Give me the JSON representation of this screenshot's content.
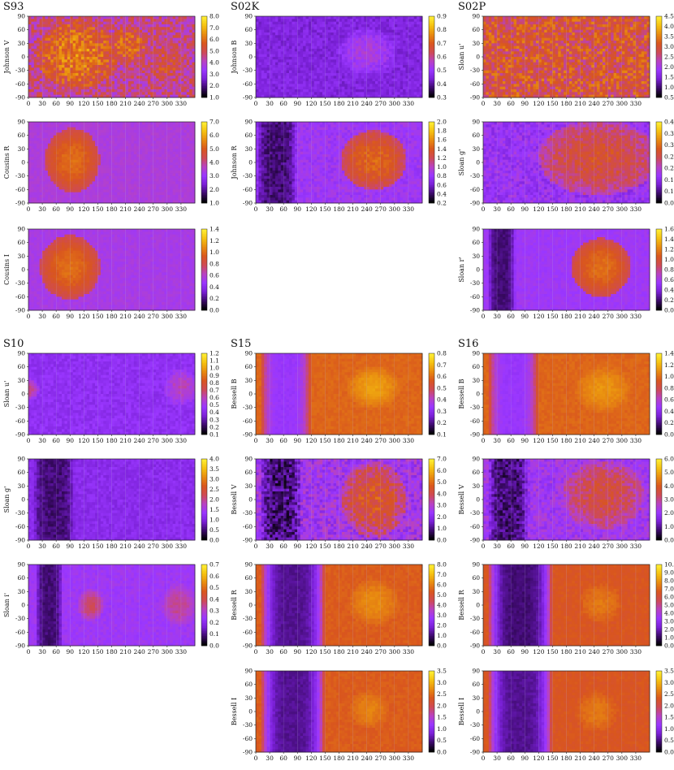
{
  "colors": {
    "scale": [
      "#000000",
      "#3d0a6b",
      "#7a20d6",
      "#9a37ff",
      "#b842c2",
      "#cf4a55",
      "#d9561e",
      "#e88a10",
      "#f5c010",
      "#ffee33"
    ],
    "grid": "#b9b4d8",
    "axis": "#222222"
  },
  "chart_data": [
    {
      "group": "S93",
      "panels": [
        {
          "type": "heatmap",
          "ylabel": "Johnson V",
          "xlim": [
            0,
            360
          ],
          "ylim": [
            -90,
            90
          ],
          "cbar": [
            "8.0",
            "7.0",
            "6.0",
            "5.0",
            "4.0",
            "3.0",
            "2.0",
            "1.0"
          ],
          "base": 0.5,
          "features": [
            {
              "x": 105,
              "y": 5,
              "rx": 75,
              "ry": 65,
              "v": 0.75
            },
            {
              "x": 215,
              "y": 25,
              "rx": 40,
              "ry": 35,
              "v": 0.7
            },
            {
              "x": 300,
              "y": -20,
              "rx": 40,
              "ry": 50,
              "v": 0.6
            }
          ],
          "tex": 0.25
        },
        {
          "type": "heatmap",
          "ylabel": "Cousins R",
          "xlim": [
            0,
            360
          ],
          "ylim": [
            -90,
            90
          ],
          "cbar": [
            "7.0",
            "6.0",
            "5.0",
            "4.0",
            "3.0",
            "2.0",
            "1.0"
          ],
          "base": 0.4,
          "features": [
            {
              "x": 95,
              "y": 5,
              "rx": 50,
              "ry": 60,
              "v": 0.72
            }
          ],
          "tex": 0.05
        },
        {
          "type": "heatmap",
          "ylabel": "Cousins I",
          "xlim": [
            0,
            360
          ],
          "ylim": [
            -90,
            90
          ],
          "cbar": [
            "1.4",
            "1.2",
            "1.0",
            "0.8",
            "0.6",
            "0.4",
            "0.2",
            "0.0"
          ],
          "base": 0.38,
          "features": [
            {
              "x": 90,
              "y": 5,
              "rx": 55,
              "ry": 60,
              "v": 0.72
            }
          ],
          "tex": 0.05
        }
      ],
      "xticks": [
        "0",
        "30",
        "60",
        "90",
        "120",
        "150",
        "180",
        "210",
        "240",
        "270",
        "300",
        "330"
      ]
    },
    {
      "group": "S02K",
      "panels": [
        {
          "type": "heatmap",
          "ylabel": "Johnson B",
          "xlim": [
            0,
            360
          ],
          "ylim": [
            -90,
            90
          ],
          "cbar": [
            "0.9",
            "0.8",
            "0.7",
            "0.6",
            "0.5",
            "0.4",
            "0.3"
          ],
          "base": 0.25,
          "features": [
            {
              "x": 240,
              "y": 10,
              "rx": 60,
              "ry": 50,
              "v": 0.4
            }
          ],
          "tex": 0.1
        },
        {
          "type": "heatmap",
          "ylabel": "Johnson R",
          "xlim": [
            0,
            360
          ],
          "ylim": [
            -90,
            90
          ],
          "cbar": [
            "2.0",
            "1.8",
            "1.6",
            "1.4",
            "1.2",
            "1.0",
            "0.8",
            "0.6",
            "0.4",
            "0.2"
          ],
          "base": 0.35,
          "dark": [
            0,
            90
          ],
          "features": [
            {
              "x": 255,
              "y": 5,
              "rx": 60,
              "ry": 55,
              "v": 0.7
            }
          ],
          "tex": 0.1
        },
        null
      ],
      "xticks": [
        "0",
        "30",
        "60",
        "90",
        "120",
        "150",
        "180",
        "210",
        "240",
        "270",
        "300",
        "330"
      ]
    },
    {
      "group": "S02P",
      "panels": [
        {
          "type": "heatmap",
          "ylabel": "Sloan u'",
          "xlim": [
            0,
            360
          ],
          "ylim": [
            -90,
            90
          ],
          "cbar": [
            "4.5",
            "4.0",
            "3.5",
            "3.0",
            "2.5",
            "2.0",
            "1.5",
            "1.0",
            "0.5"
          ],
          "base": 0.62,
          "features": [
            {
              "x": 320,
              "y": 0,
              "rx": 40,
              "ry": 80,
              "v": 0.38
            }
          ],
          "tex": 0.3
        },
        {
          "type": "heatmap",
          "ylabel": "Sloan g'",
          "xlim": [
            0,
            360
          ],
          "ylim": [
            -90,
            90
          ],
          "cbar": [
            "0.4",
            "0.3",
            "0.3",
            "0.2",
            "0.2",
            "0.1",
            "0.1",
            "0.0"
          ],
          "base": 0.33,
          "features": [
            {
              "x": 250,
              "y": 10,
              "rx": 110,
              "ry": 70,
              "v": 0.62
            }
          ],
          "tex": 0.15
        },
        {
          "type": "heatmap",
          "ylabel": "Sloan r'",
          "xlim": [
            0,
            360
          ],
          "ylim": [
            -90,
            90
          ],
          "cbar": [
            "1.6",
            "1.4",
            "1.2",
            "1.0",
            "0.8",
            "0.6",
            "0.4",
            "0.2",
            "0.0"
          ],
          "base": 0.35,
          "dark": [
            10,
            70
          ],
          "features": [
            {
              "x": 255,
              "y": 5,
              "rx": 55,
              "ry": 55,
              "v": 0.72
            }
          ],
          "tex": 0.05
        }
      ],
      "xticks": [
        "0",
        "30",
        "60",
        "90",
        "120",
        "150",
        "180",
        "210",
        "240",
        "270",
        "300",
        "330"
      ]
    },
    {
      "group": "S10",
      "panels": [
        {
          "type": "heatmap",
          "ylabel": "Sloan u'",
          "xlim": [
            0,
            360
          ],
          "ylim": [
            -90,
            90
          ],
          "cbar": [
            "1.2",
            "1.1",
            "1.0",
            "0.9",
            "0.8",
            "0.7",
            "0.6",
            "0.5",
            "0.4",
            "0.3",
            "0.2",
            "0.1"
          ],
          "base": 0.3,
          "features": [
            {
              "x": 330,
              "y": 15,
              "rx": 35,
              "ry": 40,
              "v": 0.45
            },
            {
              "x": 5,
              "y": 10,
              "rx": 15,
              "ry": 20,
              "v": 0.5
            }
          ],
          "tex": 0.08
        },
        {
          "type": "heatmap",
          "ylabel": "Sloan g'",
          "xlim": [
            0,
            360
          ],
          "ylim": [
            -90,
            90
          ],
          "cbar": [
            "4.0",
            "3.5",
            "3.0",
            "2.5",
            "2.0",
            "1.5",
            "1.0",
            "0.5",
            "0.0"
          ],
          "base": 0.28,
          "dark": [
            10,
            100
          ],
          "features": [],
          "tex": 0.08
        },
        {
          "type": "heatmap",
          "ylabel": "Sloan i'",
          "xlim": [
            0,
            360
          ],
          "ylim": [
            -90,
            90
          ],
          "cbar": [
            "0.7",
            "0.6",
            "0.5",
            "0.4",
            "0.3",
            "0.2",
            "0.1",
            "0.0"
          ],
          "base": 0.35,
          "dark": [
            15,
            75
          ],
          "features": [
            {
              "x": 135,
              "y": 0,
              "rx": 25,
              "ry": 30,
              "v": 0.55
            },
            {
              "x": 325,
              "y": 0,
              "rx": 35,
              "ry": 45,
              "v": 0.5
            }
          ],
          "tex": 0.06
        }
      ],
      "xticks": [
        "0",
        "30",
        "60",
        "90",
        "120",
        "150",
        "180",
        "210",
        "240",
        "270",
        "300",
        "330"
      ]
    },
    {
      "group": "S15",
      "panels": [
        {
          "type": "heatmap",
          "ylabel": "Bessell B",
          "xlim": [
            0,
            360
          ],
          "ylim": [
            -90,
            90
          ],
          "cbar": [
            "0.8",
            "0.7",
            "0.6",
            "0.5",
            "0.4",
            "0.3",
            "0.2",
            "0.1"
          ],
          "base": 0.7,
          "dark": [
            10,
            120
          ],
          "darkv": 0.33,
          "features": [
            {
              "x": 255,
              "y": 15,
              "rx": 60,
              "ry": 50,
              "v": 0.82
            }
          ],
          "tex": 0.04
        },
        {
          "type": "heatmap",
          "ylabel": "Bessell V",
          "xlim": [
            0,
            360
          ],
          "ylim": [
            -90,
            90
          ],
          "cbar": [
            "7.0",
            "6.0",
            "5.0",
            "4.0",
            "3.0",
            "2.0",
            "1.0",
            "0.0"
          ],
          "base": 0.36,
          "dark": [
            10,
            100
          ],
          "features": [
            {
              "x": 255,
              "y": 0,
              "rx": 60,
              "ry": 70,
              "v": 0.65
            }
          ],
          "tex": 0.2
        },
        {
          "type": "heatmap",
          "ylabel": "Bessell R",
          "xlim": [
            0,
            360
          ],
          "ylim": [
            -90,
            90
          ],
          "cbar": [
            "8.0",
            "7.0",
            "6.0",
            "5.0",
            "4.0",
            "3.0",
            "2.0",
            "1.0",
            "0.0"
          ],
          "base": 0.68,
          "dark": [
            10,
            150
          ],
          "darkv": 0.15,
          "features": [
            {
              "x": 255,
              "y": 5,
              "rx": 65,
              "ry": 60,
              "v": 0.78
            }
          ],
          "tex": 0.04
        },
        {
          "type": "heatmap",
          "ylabel": "Bessell I",
          "xlim": [
            0,
            360
          ],
          "ylim": [
            -90,
            90
          ],
          "cbar": [
            "3.5",
            "3.0",
            "2.5",
            "2.0",
            "1.5",
            "1.0",
            "0.5",
            "0.0"
          ],
          "base": 0.68,
          "dark": [
            10,
            150
          ],
          "darkv": 0.15,
          "features": [
            {
              "x": 245,
              "y": 5,
              "rx": 55,
              "ry": 55,
              "v": 0.76
            }
          ],
          "tex": 0.04
        }
      ],
      "xticks": [
        "0",
        "30",
        "60",
        "90",
        "120",
        "150",
        "180",
        "210",
        "240",
        "270",
        "300",
        "330"
      ]
    },
    {
      "group": "S16",
      "panels": [
        {
          "type": "heatmap",
          "ylabel": "Bessell B",
          "xlim": [
            0,
            360
          ],
          "ylim": [
            -90,
            90
          ],
          "cbar": [
            "1.4",
            "1.2",
            "1.0",
            "0.8",
            "0.6",
            "0.4",
            "0.2",
            "0.0"
          ],
          "base": 0.7,
          "dark": [
            10,
            120
          ],
          "darkv": 0.33,
          "features": [
            {
              "x": 260,
              "y": 10,
              "rx": 70,
              "ry": 60,
              "v": 0.8
            }
          ],
          "tex": 0.04
        },
        {
          "type": "heatmap",
          "ylabel": "Bessell V",
          "xlim": [
            0,
            360
          ],
          "ylim": [
            -90,
            90
          ],
          "cbar": [
            "6.0",
            "5.0",
            "4.0",
            "3.0",
            "2.0",
            "1.0",
            "0.0"
          ],
          "base": 0.36,
          "dark": [
            10,
            100
          ],
          "features": [
            {
              "x": 260,
              "y": 10,
              "rx": 75,
              "ry": 65,
              "v": 0.6
            }
          ],
          "tex": 0.15
        },
        {
          "type": "heatmap",
          "ylabel": "Bessell R",
          "xlim": [
            0,
            360
          ],
          "ylim": [
            -90,
            90
          ],
          "cbar": [
            "10.0",
            "9.0",
            "8.0",
            "7.0",
            "6.0",
            "5.0",
            "4.0",
            "3.0",
            "2.0",
            "1.0",
            "0.0"
          ],
          "base": 0.66,
          "dark": [
            10,
            150
          ],
          "darkv": 0.12,
          "features": [
            {
              "x": 255,
              "y": 5,
              "rx": 60,
              "ry": 60,
              "v": 0.74
            }
          ],
          "tex": 0.04
        },
        {
          "type": "heatmap",
          "ylabel": "Bessell I",
          "xlim": [
            0,
            360
          ],
          "ylim": [
            -90,
            90
          ],
          "cbar": [
            "3.5",
            "3.0",
            "2.5",
            "2.0",
            "1.5",
            "1.0",
            "0.5",
            "0.0"
          ],
          "base": 0.66,
          "dark": [
            10,
            150
          ],
          "darkv": 0.15,
          "features": [
            {
              "x": 245,
              "y": 0,
              "rx": 60,
              "ry": 60,
              "v": 0.74
            }
          ],
          "tex": 0.04
        }
      ],
      "xticks": [
        "0",
        "30",
        "60",
        "90",
        "120",
        "150",
        "180",
        "210",
        "240",
        "270",
        "300",
        "330"
      ]
    }
  ],
  "yticks": [
    "90",
    "60",
    "30",
    "0",
    "-30",
    "-60",
    "-90"
  ]
}
